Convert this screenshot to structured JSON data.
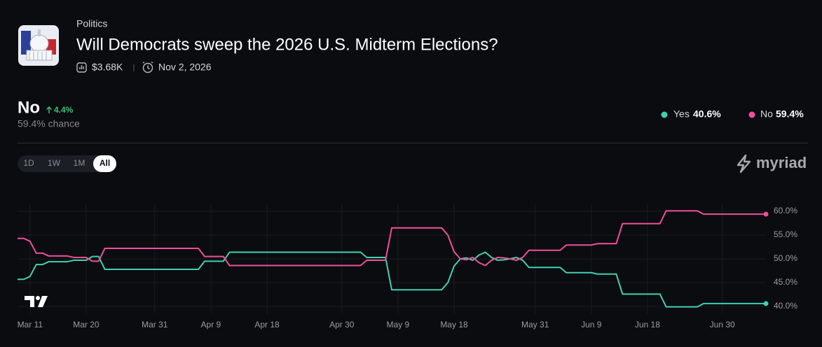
{
  "market": {
    "category": "Politics",
    "title": "Will Democrats sweep the 2026 U.S. Midterm Elections?",
    "volume": "$3.68K",
    "end_date": "Nov 2, 2026"
  },
  "outcome": {
    "name": "No",
    "change": "4.4%",
    "chance": "59.4% chance"
  },
  "ranges": [
    "1D",
    "1W",
    "1M",
    "All"
  ],
  "brand": "myriad",
  "chart_data": {
    "type": "line",
    "categories": [
      null,
      null,
      "Mar 11",
      null,
      null,
      null,
      null,
      null,
      null,
      null,
      null,
      "Mar 20",
      null,
      null,
      null,
      null,
      null,
      null,
      null,
      null,
      null,
      null,
      "Mar 31",
      null,
      null,
      null,
      null,
      null,
      null,
      null,
      null,
      "Apr 9",
      null,
      null,
      null,
      null,
      null,
      null,
      null,
      null,
      "Apr 18",
      null,
      null,
      null,
      null,
      null,
      null,
      null,
      null,
      null,
      null,
      null,
      "Apr 30",
      null,
      null,
      null,
      null,
      null,
      null,
      null,
      null,
      "May 9",
      null,
      null,
      null,
      null,
      null,
      null,
      null,
      null,
      "May 18",
      null,
      null,
      null,
      null,
      null,
      null,
      null,
      null,
      null,
      null,
      null,
      null,
      "May 31",
      null,
      null,
      null,
      null,
      null,
      null,
      null,
      null,
      "Jun 9",
      null,
      null,
      null,
      null,
      null,
      null,
      null,
      null,
      "Jun 18",
      null,
      null,
      null,
      null,
      null,
      null,
      null,
      null,
      null,
      null,
      null,
      "Jun 30",
      null,
      null,
      null,
      null,
      null,
      null,
      null
    ],
    "series": [
      {
        "name": "Yes",
        "last_label": "40.6%",
        "color": "#3fd0b0",
        "values": [
          45.7,
          45.7,
          46.3,
          48.8,
          48.8,
          49.4,
          49.4,
          49.4,
          49.4,
          49.7,
          49.7,
          49.7,
          50.5,
          50.5,
          47.8,
          47.8,
          47.8,
          47.8,
          47.8,
          47.8,
          47.8,
          47.8,
          47.8,
          47.8,
          47.8,
          47.8,
          47.8,
          47.8,
          47.8,
          47.8,
          49.5,
          49.5,
          49.5,
          49.5,
          51.4,
          51.4,
          51.4,
          51.4,
          51.4,
          51.4,
          51.4,
          51.4,
          51.4,
          51.4,
          51.4,
          51.4,
          51.4,
          51.4,
          51.4,
          51.4,
          51.4,
          51.4,
          51.4,
          51.4,
          51.4,
          51.4,
          50.3,
          50.3,
          50.3,
          50.3,
          43.5,
          43.5,
          43.5,
          43.5,
          43.5,
          43.5,
          43.5,
          43.5,
          43.5,
          45.0,
          48.5,
          50.0,
          50.2,
          49.7,
          50.8,
          51.4,
          50.3,
          49.7,
          49.8,
          50.0,
          50.3,
          49.7,
          48.2,
          48.2,
          48.2,
          48.2,
          48.2,
          48.2,
          47.1,
          47.1,
          47.1,
          47.1,
          47.1,
          46.8,
          46.8,
          46.8,
          46.8,
          42.6,
          42.6,
          42.6,
          42.6,
          42.6,
          42.6,
          42.6,
          39.9,
          39.9,
          39.9,
          39.9,
          39.9,
          39.9,
          40.6,
          40.6,
          40.6,
          40.6,
          40.6,
          40.6,
          40.6,
          40.6,
          40.6,
          40.6,
          40.6
        ]
      },
      {
        "name": "No",
        "last_label": "59.4%",
        "color": "#ee4f9c",
        "values": [
          54.3,
          54.3,
          53.7,
          51.2,
          51.2,
          50.6,
          50.6,
          50.6,
          50.6,
          50.3,
          50.3,
          50.3,
          49.5,
          49.5,
          52.2,
          52.2,
          52.2,
          52.2,
          52.2,
          52.2,
          52.2,
          52.2,
          52.2,
          52.2,
          52.2,
          52.2,
          52.2,
          52.2,
          52.2,
          52.2,
          50.5,
          50.5,
          50.5,
          50.5,
          48.6,
          48.6,
          48.6,
          48.6,
          48.6,
          48.6,
          48.6,
          48.6,
          48.6,
          48.6,
          48.6,
          48.6,
          48.6,
          48.6,
          48.6,
          48.6,
          48.6,
          48.6,
          48.6,
          48.6,
          48.6,
          48.6,
          49.7,
          49.7,
          49.7,
          49.7,
          56.5,
          56.5,
          56.5,
          56.5,
          56.5,
          56.5,
          56.5,
          56.5,
          56.5,
          55.0,
          51.5,
          50.0,
          49.8,
          50.3,
          49.2,
          48.6,
          49.7,
          50.3,
          50.2,
          50.0,
          49.7,
          50.3,
          51.8,
          51.8,
          51.8,
          51.8,
          51.8,
          51.8,
          52.9,
          52.9,
          52.9,
          52.9,
          52.9,
          53.2,
          53.2,
          53.2,
          53.2,
          57.4,
          57.4,
          57.4,
          57.4,
          57.4,
          57.4,
          57.4,
          60.1,
          60.1,
          60.1,
          60.1,
          60.1,
          60.1,
          59.4,
          59.4,
          59.4,
          59.4,
          59.4,
          59.4,
          59.4,
          59.4,
          59.4,
          59.4,
          59.4
        ]
      }
    ],
    "ylim": [
      38.5,
      61.5
    ],
    "yticks": [
      {
        "value": 40,
        "label": "40.0%"
      },
      {
        "value": 45,
        "label": "45.0%"
      },
      {
        "value": 50,
        "label": "50.0%"
      },
      {
        "value": 55,
        "label": "55.0%"
      },
      {
        "value": 60,
        "label": "60.0%"
      }
    ],
    "grid": true
  }
}
